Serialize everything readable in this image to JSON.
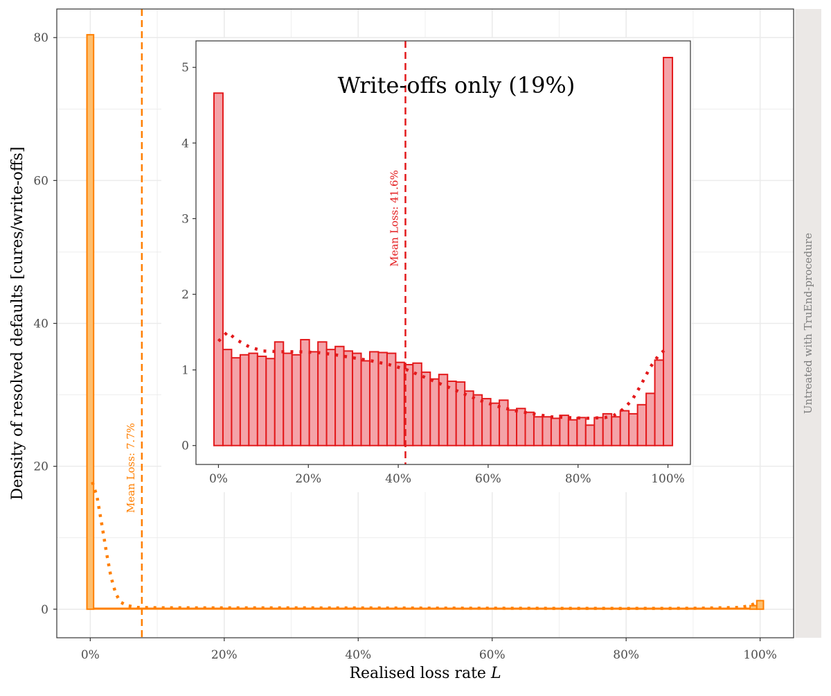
{
  "chart_data": [
    {
      "type": "bar",
      "subset": "all-resolved-defaults",
      "xlabel": "Realised loss rate ",
      "xlabel_italic": "L",
      "ylabel": "Density of resolved defaults [cures/write-offs]",
      "strip_label": "Untreated with TruEnd-procedure",
      "xlim": [
        -0.05,
        1.05
      ],
      "ylim": [
        -4,
        84
      ],
      "x_ticks": [
        0,
        0.2,
        0.4,
        0.6,
        0.8,
        1.0
      ],
      "x_tick_labels": [
        "0%",
        "20%",
        "40%",
        "60%",
        "80%",
        "100%"
      ],
      "y_ticks": [
        0,
        20,
        40,
        60,
        80
      ],
      "y_tick_labels": [
        "0",
        "20",
        "40",
        "60",
        "80"
      ],
      "grid": true,
      "colors": {
        "bar_fill": "#fdbf6f",
        "bar_stroke": "#ff7f00",
        "mean_line": "#ff7f00",
        "density": "#ff7f00",
        "strip_bg": "#ebe8e6",
        "panel_border": "#333333",
        "grid": "#ebebeb"
      },
      "bin_width": 0.01,
      "bars": [
        {
          "x": 0.0,
          "value": 80.4
        },
        {
          "x": 0.99,
          "value": 0.5
        },
        {
          "x": 1.0,
          "value": 1.2
        }
      ],
      "baseline_value": 0.15,
      "mean_line": {
        "x": 0.077,
        "label": "Mean Loss: 7.7%"
      },
      "density_curve": {
        "x": [
          0.003,
          0.01,
          0.017,
          0.024,
          0.031,
          0.038,
          0.045,
          0.055,
          0.07,
          0.1,
          0.2,
          0.3,
          0.4,
          0.5,
          0.6,
          0.7,
          0.8,
          0.9,
          0.97,
          0.985,
          0.995
        ],
        "y": [
          17.8,
          15.8,
          12.0,
          8.0,
          4.5,
          2.2,
          1.0,
          0.5,
          0.25,
          0.2,
          0.18,
          0.18,
          0.17,
          0.15,
          0.13,
          0.11,
          0.1,
          0.12,
          0.25,
          0.5,
          0.9
        ]
      }
    },
    {
      "type": "bar",
      "subset": "write-offs",
      "title": "Write-offs only (19%)",
      "xlim": [
        -0.05,
        1.05
      ],
      "ylim": [
        -0.25,
        5.35
      ],
      "x_ticks": [
        0,
        0.2,
        0.4,
        0.6,
        0.8,
        1.0
      ],
      "x_tick_labels": [
        "0%",
        "20%",
        "40%",
        "60%",
        "80%",
        "100%"
      ],
      "y_ticks": [
        0,
        1,
        2,
        3,
        4,
        5
      ],
      "y_tick_labels": [
        "0",
        "1",
        "2",
        "3",
        "4",
        "5"
      ],
      "grid": false,
      "colors": {
        "bar_fill": "#f4a3a8",
        "bar_stroke": "#e31a1c",
        "mean_line": "#e31a1c",
        "density": "#e31a1c"
      },
      "bin_width": 0.02,
      "bars": [
        4.66,
        1.27,
        1.16,
        1.2,
        1.22,
        1.18,
        1.15,
        1.37,
        1.22,
        1.2,
        1.4,
        1.24,
        1.37,
        1.27,
        1.31,
        1.25,
        1.22,
        1.12,
        1.24,
        1.23,
        1.22,
        1.1,
        1.07,
        1.09,
        0.97,
        0.88,
        0.94,
        0.85,
        0.84,
        0.72,
        0.67,
        0.62,
        0.56,
        0.6,
        0.47,
        0.49,
        0.44,
        0.38,
        0.38,
        0.36,
        0.4,
        0.34,
        0.37,
        0.27,
        0.37,
        0.42,
        0.38,
        0.46,
        0.42,
        0.54,
        0.69,
        1.13,
        5.13
      ],
      "bar_centers": [
        0.0,
        0.02,
        0.04,
        0.06,
        0.08,
        0.1,
        0.12,
        0.14,
        0.16,
        0.18,
        0.2,
        0.22,
        0.24,
        0.26,
        0.28,
        0.3,
        0.32,
        0.34,
        0.36,
        0.38,
        0.4,
        0.42,
        0.44,
        0.46,
        0.48,
        0.5,
        0.52,
        0.54,
        0.56,
        0.58,
        0.6,
        0.62,
        0.64,
        0.66,
        0.68,
        0.7,
        0.72,
        0.74,
        0.76,
        0.78,
        0.8,
        0.82,
        0.84,
        0.86,
        0.88,
        0.9,
        0.92,
        0.94,
        0.96,
        0.98,
        0.955,
        0.975,
        1.0
      ],
      "mean_line": {
        "x": 0.416,
        "label": "Mean Loss: 41.6%"
      },
      "density_curve": {
        "x": [
          0.0,
          0.02,
          0.04,
          0.07,
          0.1,
          0.14,
          0.18,
          0.22,
          0.26,
          0.3,
          0.34,
          0.38,
          0.42,
          0.46,
          0.5,
          0.54,
          0.58,
          0.62,
          0.66,
          0.7,
          0.74,
          0.78,
          0.82,
          0.86,
          0.88,
          0.9,
          0.92,
          0.94,
          0.96,
          0.98,
          1.0
        ],
        "y": [
          1.38,
          1.5,
          1.4,
          1.3,
          1.25,
          1.24,
          1.24,
          1.23,
          1.2,
          1.16,
          1.12,
          1.07,
          1.0,
          0.9,
          0.8,
          0.7,
          0.6,
          0.52,
          0.46,
          0.42,
          0.38,
          0.37,
          0.36,
          0.37,
          0.4,
          0.48,
          0.6,
          0.8,
          1.03,
          1.2,
          1.3
        ]
      }
    }
  ]
}
